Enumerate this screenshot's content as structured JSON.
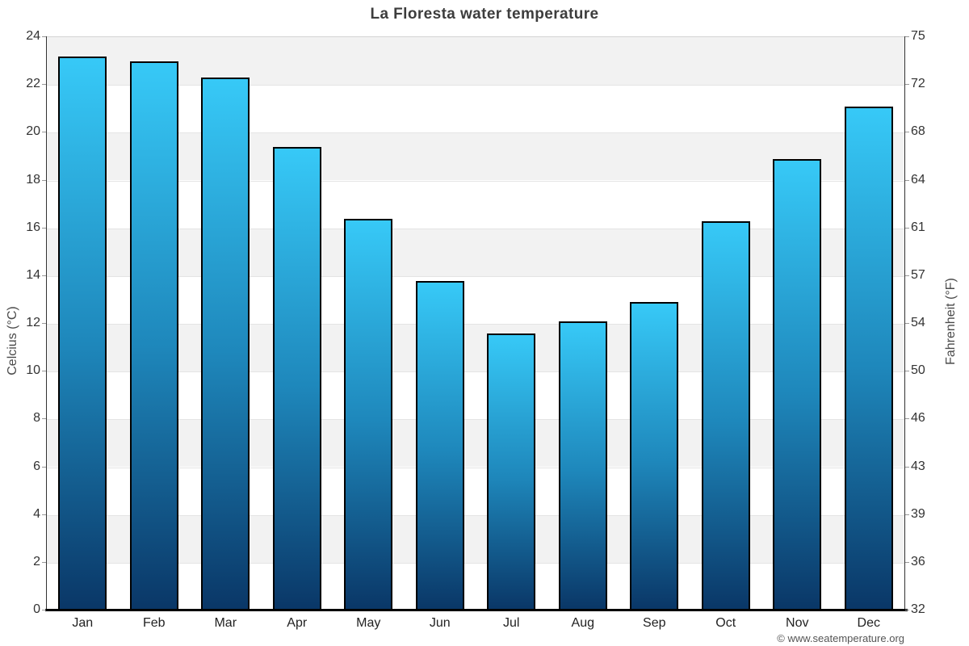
{
  "title": "La Floresta water temperature",
  "footer": {
    "credit": "© www.seatemperature.org"
  },
  "axes": {
    "left": {
      "label": "Celcius (°C)",
      "ticks": [
        0,
        2,
        4,
        6,
        8,
        10,
        12,
        14,
        16,
        18,
        20,
        22,
        24
      ]
    },
    "right": {
      "label": "Fahrenheit (°F)",
      "ticks": [
        32,
        36,
        39,
        43,
        46,
        50,
        54,
        57,
        61,
        64,
        68,
        72,
        75
      ]
    }
  },
  "chart_data": {
    "type": "bar",
    "title": "La Floresta water temperature",
    "categories": [
      "Jan",
      "Feb",
      "Mar",
      "Apr",
      "May",
      "Jun",
      "Jul",
      "Aug",
      "Sep",
      "Oct",
      "Nov",
      "Dec"
    ],
    "values": [
      23.2,
      23.0,
      22.3,
      19.4,
      16.4,
      13.8,
      11.6,
      12.1,
      12.9,
      16.3,
      18.9,
      21.1
    ],
    "unit": "°C",
    "xlabel": "",
    "ylabel_left": "Celcius (°C)",
    "ylabel_right": "Fahrenheit (°F)",
    "ylim": [
      0,
      24
    ],
    "grid": "alternating-horizontal-bands",
    "legend": "none",
    "colors": {
      "bar_gradient_top": "#37c9f7",
      "bar_gradient_mid": "#1e87bb",
      "bar_gradient_bottom": "#0a3767",
      "bar_border": "#000000",
      "band_fill": "#f2f2f2",
      "gridline": "#e4e4e4",
      "axis_line": "#333333",
      "baseline": "#000000",
      "title_text": "#3d3d3d",
      "tick_text": "#333333",
      "credit_text": "#555555"
    }
  }
}
